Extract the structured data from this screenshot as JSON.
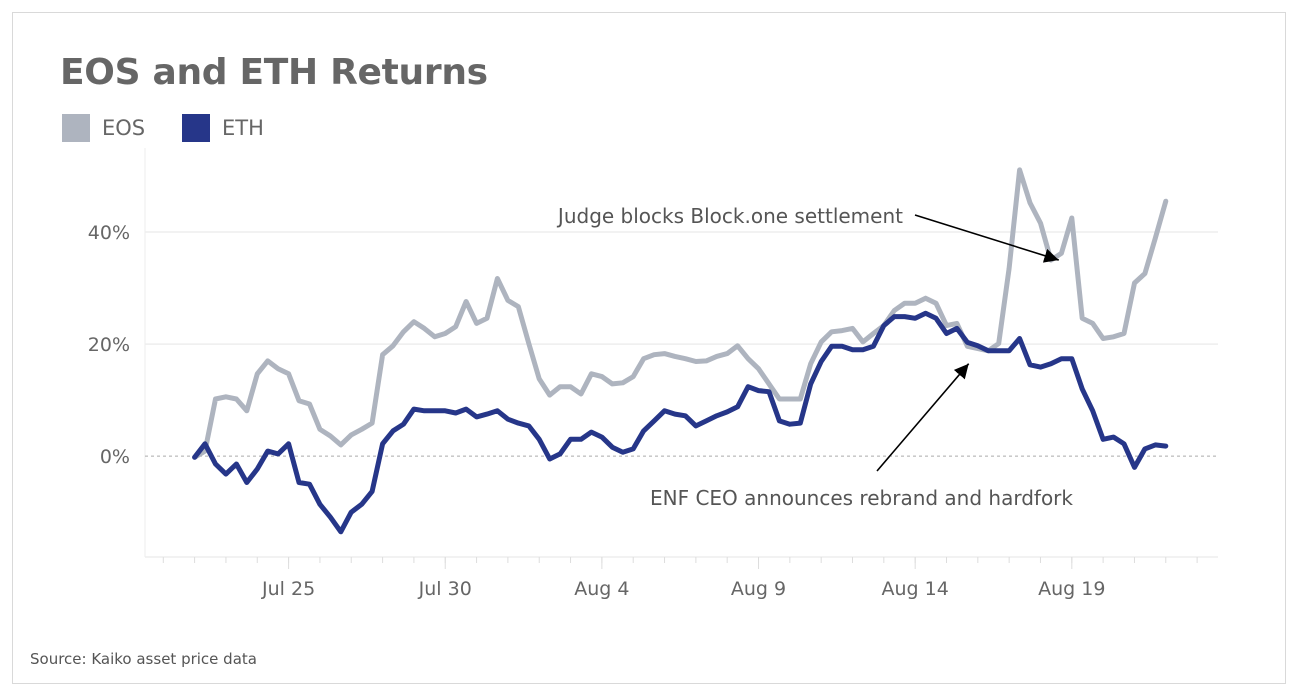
{
  "source": "Source: Kaiko asset price data",
  "chart_data": {
    "type": "line",
    "title": "EOS and ETH Returns",
    "xlabel": "",
    "ylabel": "",
    "legend_placement": "top-left",
    "grid": true,
    "ylim": [
      -18,
      55
    ],
    "yticks": [
      {
        "value": 0,
        "label": "0%"
      },
      {
        "value": 20,
        "label": "20%"
      },
      {
        "value": 40,
        "label": "40%"
      }
    ],
    "xlim": [
      "Jul 20 10:00",
      "Aug 23 16:00"
    ],
    "xticks": [
      {
        "value": "Jul 25 00:00",
        "label": "Jul 25"
      },
      {
        "value": "Jul 30 00:00",
        "label": "Jul 30"
      },
      {
        "value": "Aug 4 00:00",
        "label": "Aug 4"
      },
      {
        "value": "Aug 9 00:00",
        "label": "Aug 9"
      },
      {
        "value": "Aug 14 00:00",
        "label": "Aug 14"
      },
      {
        "value": "Aug 19 00:00",
        "label": "Aug 19"
      }
    ],
    "x": [
      "Jul 22 00:00",
      "Jul 22 08:00",
      "Jul 22 16:00",
      "Jul 23 00:00",
      "Jul 23 08:00",
      "Jul 23 16:00",
      "Jul 24 00:00",
      "Jul 24 08:00",
      "Jul 24 16:00",
      "Jul 25 00:00",
      "Jul 25 08:00",
      "Jul 25 16:00",
      "Jul 26 00:00",
      "Jul 26 08:00",
      "Jul 26 16:00",
      "Jul 27 00:00",
      "Jul 27 08:00",
      "Jul 27 16:00",
      "Jul 28 00:00",
      "Jul 28 08:00",
      "Jul 28 16:00",
      "Jul 29 00:00",
      "Jul 29 08:00",
      "Jul 29 16:00",
      "Jul 30 00:00",
      "Jul 30 08:00",
      "Jul 30 16:00",
      "Jul 31 00:00",
      "Jul 31 08:00",
      "Jul 31 16:00",
      "Aug 1 00:00",
      "Aug 1 08:00",
      "Aug 1 16:00",
      "Aug 2 00:00",
      "Aug 2 08:00",
      "Aug 2 16:00",
      "Aug 3 00:00",
      "Aug 3 08:00",
      "Aug 3 16:00",
      "Aug 4 00:00",
      "Aug 4 08:00",
      "Aug 4 16:00",
      "Aug 5 00:00",
      "Aug 5 08:00",
      "Aug 5 16:00",
      "Aug 6 00:00",
      "Aug 6 08:00",
      "Aug 6 16:00",
      "Aug 7 00:00",
      "Aug 7 08:00",
      "Aug 7 16:00",
      "Aug 8 00:00",
      "Aug 8 08:00",
      "Aug 8 16:00",
      "Aug 9 00:00",
      "Aug 9 08:00",
      "Aug 9 16:00",
      "Aug 10 00:00",
      "Aug 10 08:00",
      "Aug 10 16:00",
      "Aug 11 00:00",
      "Aug 11 08:00",
      "Aug 11 16:00",
      "Aug 12 00:00",
      "Aug 12 08:00",
      "Aug 12 16:00",
      "Aug 13 00:00",
      "Aug 13 08:00",
      "Aug 13 16:00",
      "Aug 14 00:00",
      "Aug 14 08:00",
      "Aug 14 16:00",
      "Aug 15 00:00",
      "Aug 15 08:00",
      "Aug 15 16:00",
      "Aug 16 00:00",
      "Aug 16 08:00",
      "Aug 16 16:00",
      "Aug 17 00:00",
      "Aug 17 08:00",
      "Aug 17 16:00",
      "Aug 18 00:00",
      "Aug 18 08:00",
      "Aug 18 16:00",
      "Aug 19 00:00",
      "Aug 19 08:00",
      "Aug 19 16:00",
      "Aug 20 00:00",
      "Aug 20 08:00",
      "Aug 20 16:00",
      "Aug 21 00:00",
      "Aug 21 08:00",
      "Aug 21 16:00",
      "Aug 22 00:00"
    ],
    "series": [
      {
        "name": "EOS",
        "color": "#aeb4bf",
        "values": [
          -0.2,
          0.9,
          10.2,
          10.6,
          10.2,
          8.1,
          14.7,
          17.0,
          15.6,
          14.7,
          9.9,
          9.3,
          4.8,
          3.6,
          2.0,
          3.8,
          4.8,
          5.9,
          18.1,
          19.7,
          22.2,
          24.0,
          22.8,
          21.3,
          21.9,
          23.1,
          27.6,
          23.7,
          24.6,
          31.7,
          27.8,
          26.7,
          20.1,
          13.8,
          10.9,
          12.4,
          12.4,
          11.1,
          14.7,
          14.2,
          12.9,
          13.1,
          14.2,
          17.4,
          18.1,
          18.3,
          17.8,
          17.4,
          16.9,
          17.0,
          17.8,
          18.3,
          19.7,
          17.4,
          15.6,
          12.9,
          10.2,
          10.2,
          10.2,
          16.5,
          20.4,
          22.2,
          22.4,
          22.8,
          20.4,
          21.9,
          23.3,
          26.0,
          27.3,
          27.3,
          28.2,
          27.3,
          23.3,
          23.7,
          19.6,
          19.2,
          18.8,
          20.1,
          33.5,
          51.1,
          45.2,
          41.6,
          35.0,
          36.2,
          42.5,
          24.6,
          23.7,
          21.0,
          21.3,
          21.9,
          30.9,
          32.6,
          38.9,
          45.5
        ]
      },
      {
        "name": "ETH",
        "color": "#263689",
        "values": [
          -0.2,
          2.2,
          -1.4,
          -3.2,
          -1.4,
          -4.7,
          -2.3,
          0.9,
          0.4,
          2.2,
          -4.7,
          -5.0,
          -8.6,
          -10.9,
          -13.5,
          -10.0,
          -8.6,
          -6.3,
          2.2,
          4.5,
          5.7,
          8.4,
          8.1,
          8.1,
          8.1,
          7.7,
          8.4,
          7.0,
          7.5,
          8.1,
          6.6,
          5.9,
          5.4,
          3.0,
          -0.5,
          0.4,
          3.0,
          3.0,
          4.3,
          3.4,
          1.6,
          0.7,
          1.3,
          4.5,
          6.3,
          8.1,
          7.5,
          7.2,
          5.4,
          6.3,
          7.2,
          7.9,
          8.8,
          12.4,
          11.7,
          11.5,
          6.3,
          5.7,
          5.9,
          12.9,
          16.9,
          19.6,
          19.6,
          19.0,
          19.0,
          19.6,
          23.3,
          24.9,
          24.9,
          24.6,
          25.5,
          24.6,
          21.9,
          22.8,
          20.3,
          19.7,
          18.8,
          18.8,
          18.8,
          21.0,
          16.3,
          15.9,
          16.5,
          17.4,
          17.4,
          12.0,
          8.1,
          3.0,
          3.4,
          2.2,
          -2.0,
          1.3,
          2.0,
          1.8
        ]
      }
    ],
    "annotations": [
      {
        "text": "Judge blocks Block.one settlement",
        "target_x": "Aug 18 14:00",
        "target_y": 35
      },
      {
        "text": "ENF CEO announces rebrand and hardfork",
        "target_x": "Aug 15 17:00",
        "target_y": 16.5
      }
    ]
  }
}
